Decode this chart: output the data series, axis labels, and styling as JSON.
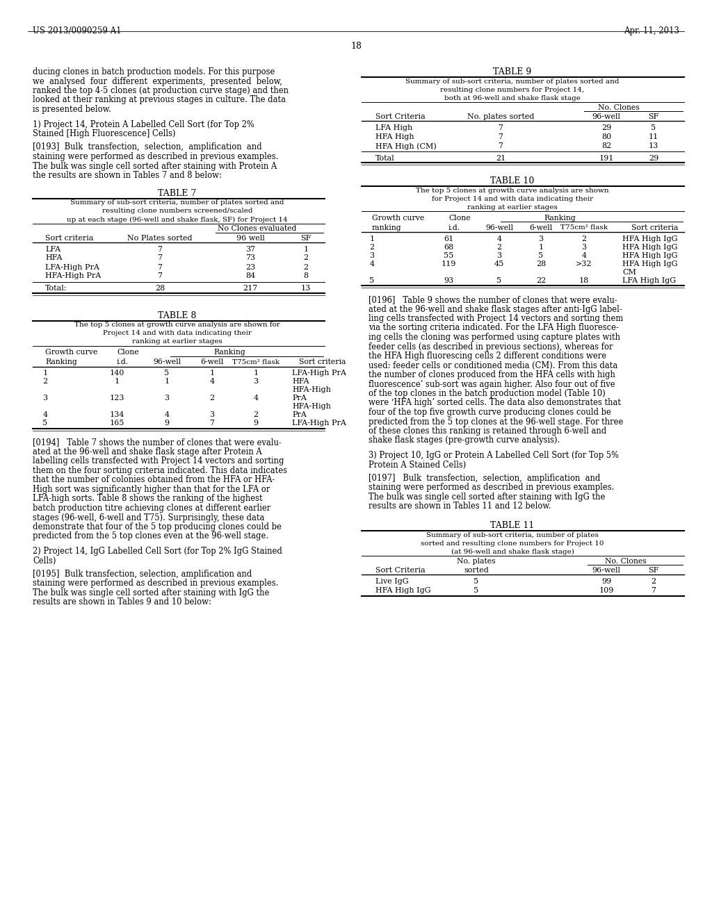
{
  "page_header_left": "US 2013/0090259 A1",
  "page_header_right": "Apr. 11, 2013",
  "page_number": "18",
  "background_color": "#ffffff",
  "text_color": "#000000"
}
